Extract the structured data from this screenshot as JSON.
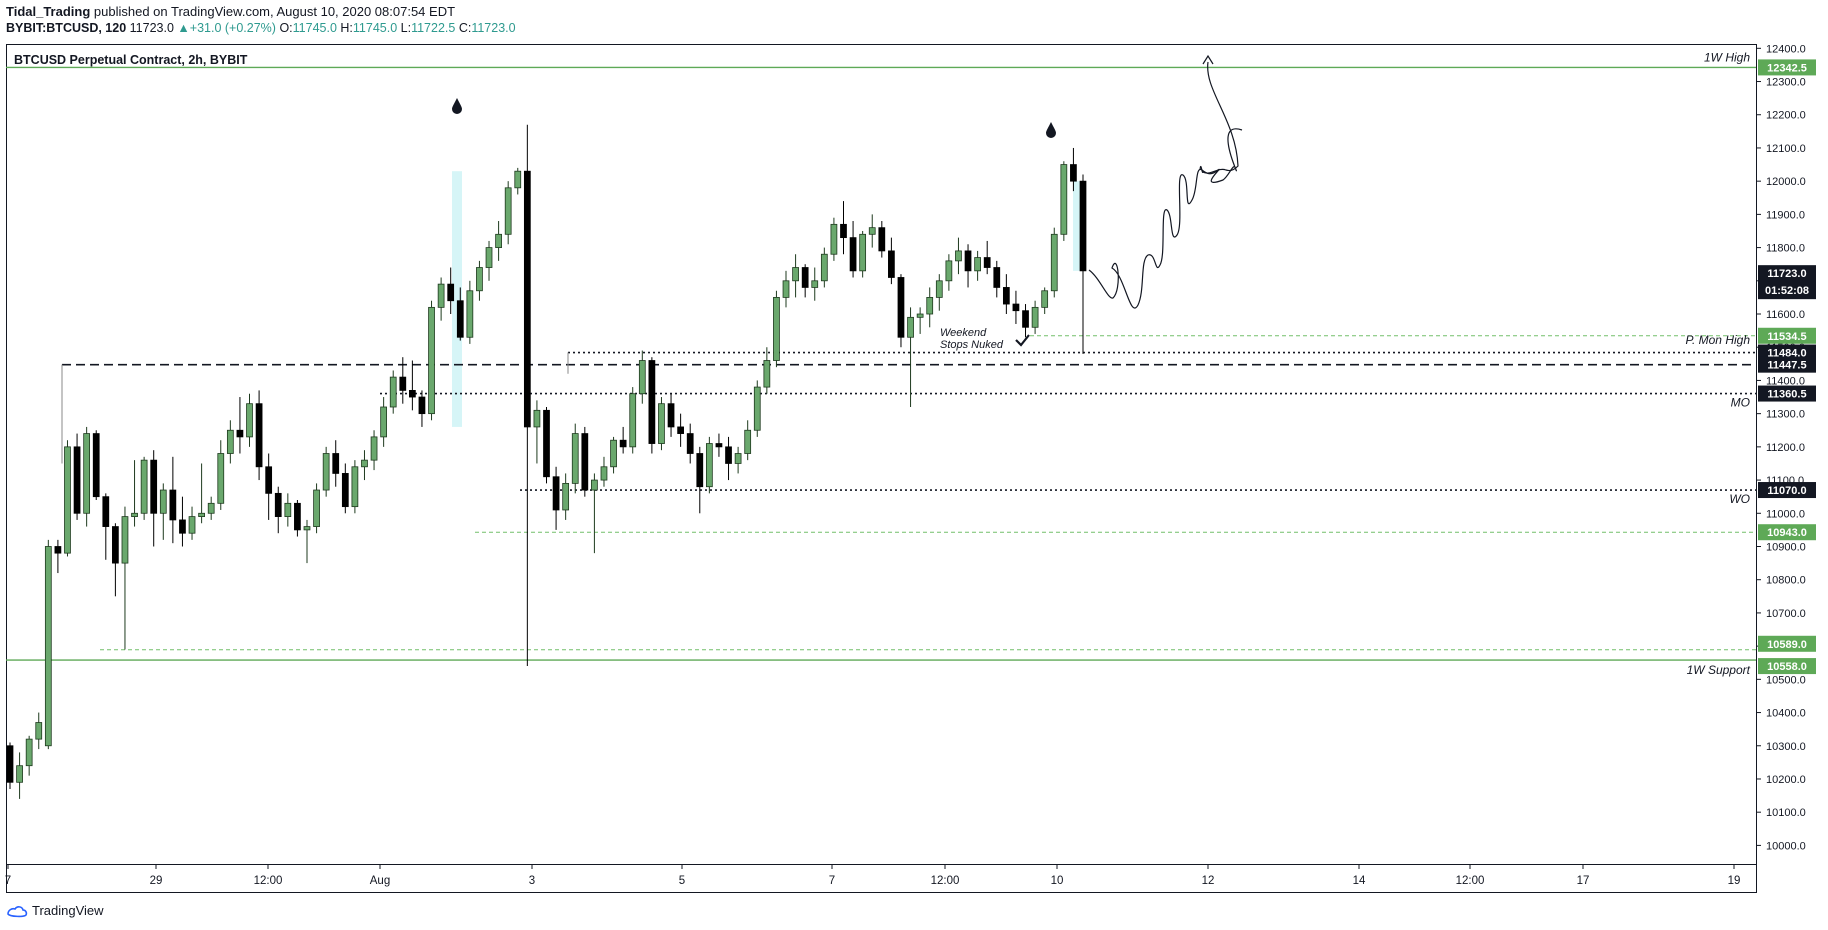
{
  "header": {
    "author": "Tidal_Trading",
    "published_text": "published on TradingView.com, August 10, 2020 08:07:54 EDT",
    "symbol": "BYBIT:BTCUSD, 120",
    "last": "11723.0",
    "change_arrow": "▲",
    "change": "+31.0 (+0.27%)",
    "o_label": "O:",
    "o": "11745.0",
    "h_label": "H:",
    "h": "11745.0",
    "l_label": "L:",
    "l": "11722.5",
    "c_label": "C:",
    "c": "11723.0"
  },
  "footer": {
    "brand": "TradingView",
    "logo_icon": "tradingview-logo-icon"
  },
  "colors": {
    "bull_fill": "#6aa86d",
    "bull_border": "#1e3a1e",
    "bear": "#000000",
    "support_line": "#5ea957",
    "dashed_green": "#72bf6a",
    "axis_text": "#131722",
    "price_tag_dark": "#131722",
    "price_tag_green": "#5ea957",
    "highlight": "#d6f5f7"
  },
  "chart_data": {
    "type": "candlestick",
    "title": "BTCUSD Perpetual Contract, 2h, BYBIT",
    "xlabel": "",
    "ylabel": "",
    "ylim": [
      9950,
      12420
    ],
    "y_ticks": [
      "12400.0",
      "12300.0",
      "12200.0",
      "12100.0",
      "12000.0",
      "11900.0",
      "11800.0",
      "11700.0",
      "11600.0",
      "11500.0",
      "11400.0",
      "11300.0",
      "11200.0",
      "11100.0",
      "11000.0",
      "10900.0",
      "10800.0",
      "10700.0",
      "10600.0",
      "10500.0",
      "10400.0",
      "10300.0",
      "10200.0",
      "10100.0",
      "10000.0"
    ],
    "x_ticks": [
      "7",
      "29",
      "12:00",
      "Aug",
      "3",
      "5",
      "7",
      "12:00",
      "10",
      "12",
      "14",
      "12:00",
      "17",
      "19"
    ],
    "legend": "none",
    "grid": false,
    "candles": [
      [
        10300,
        10310,
        10170,
        10190
      ],
      [
        10190,
        10280,
        10140,
        10240
      ],
      [
        10240,
        10330,
        10210,
        10320
      ],
      [
        10320,
        10400,
        10290,
        10370
      ],
      [
        10300,
        10920,
        10290,
        10900
      ],
      [
        10900,
        10920,
        10820,
        10880
      ],
      [
        10880,
        11220,
        10870,
        11200
      ],
      [
        11200,
        11240,
        10980,
        11000
      ],
      [
        11000,
        11260,
        10960,
        11240
      ],
      [
        11240,
        11250,
        11040,
        11050
      ],
      [
        11050,
        11060,
        10860,
        10960
      ],
      [
        10960,
        10970,
        10750,
        10850
      ],
      [
        10850,
        11020,
        10590,
        10990
      ],
      [
        10990,
        11160,
        10960,
        11000
      ],
      [
        11000,
        11170,
        10980,
        11160
      ],
      [
        11160,
        11190,
        10900,
        11000
      ],
      [
        11000,
        11090,
        10920,
        11070
      ],
      [
        11070,
        11170,
        10910,
        10980
      ],
      [
        10980,
        11050,
        10900,
        10940
      ],
      [
        10940,
        11020,
        10920,
        10990
      ],
      [
        10990,
        11150,
        10970,
        11000
      ],
      [
        11000,
        11050,
        10980,
        11030
      ],
      [
        11030,
        11220,
        11010,
        11180
      ],
      [
        11180,
        11280,
        11150,
        11250
      ],
      [
        11250,
        11350,
        11180,
        11230
      ],
      [
        11230,
        11360,
        11200,
        11330
      ],
      [
        11330,
        11370,
        11100,
        11140
      ],
      [
        11140,
        11180,
        10980,
        11060
      ],
      [
        11060,
        11080,
        10940,
        10990
      ],
      [
        10990,
        11060,
        10960,
        11030
      ],
      [
        11030,
        11040,
        10930,
        10950
      ],
      [
        10950,
        10980,
        10850,
        10960
      ],
      [
        10960,
        11090,
        10940,
        11070
      ],
      [
        11070,
        11200,
        11050,
        11180
      ],
      [
        11180,
        11220,
        11080,
        11120
      ],
      [
        11120,
        11150,
        11000,
        11020
      ],
      [
        11020,
        11160,
        11000,
        11140
      ],
      [
        11140,
        11190,
        11100,
        11160
      ],
      [
        11160,
        11250,
        11130,
        11230
      ],
      [
        11230,
        11350,
        11200,
        11320
      ],
      [
        11320,
        11430,
        11300,
        11410
      ],
      [
        11410,
        11470,
        11330,
        11370
      ],
      [
        11370,
        11460,
        11310,
        11350
      ],
      [
        11350,
        11370,
        11260,
        11300
      ],
      [
        11300,
        11640,
        11280,
        11620
      ],
      [
        11620,
        11710,
        11580,
        11690
      ],
      [
        11690,
        11740,
        11600,
        11640
      ],
      [
        11640,
        11680,
        11520,
        11530
      ],
      [
        11530,
        11700,
        11510,
        11670
      ],
      [
        11670,
        11760,
        11640,
        11740
      ],
      [
        11740,
        11820,
        11700,
        11800
      ],
      [
        11800,
        11880,
        11760,
        11840
      ],
      [
        11840,
        12000,
        11810,
        11980
      ],
      [
        11980,
        12040,
        11960,
        12030
      ],
      [
        12030,
        12170,
        10540,
        11260
      ],
      [
        11260,
        11340,
        11150,
        11310
      ],
      [
        11310,
        11320,
        11090,
        11110
      ],
      [
        11110,
        11140,
        10950,
        11010
      ],
      [
        11010,
        11120,
        10980,
        11090
      ],
      [
        11090,
        11270,
        11060,
        11240
      ],
      [
        11240,
        11260,
        11050,
        11070
      ],
      [
        11070,
        11120,
        10880,
        11100
      ],
      [
        11100,
        11170,
        11080,
        11140
      ],
      [
        11140,
        11230,
        11120,
        11220
      ],
      [
        11220,
        11260,
        11180,
        11200
      ],
      [
        11200,
        11380,
        11180,
        11360
      ],
      [
        11360,
        11490,
        11330,
        11460
      ],
      [
        11460,
        11470,
        11180,
        11210
      ],
      [
        11210,
        11350,
        11190,
        11330
      ],
      [
        11330,
        11360,
        11230,
        11260
      ],
      [
        11260,
        11300,
        11200,
        11240
      ],
      [
        11240,
        11270,
        11150,
        11180
      ],
      [
        11180,
        11200,
        11000,
        11080
      ],
      [
        11080,
        11230,
        11060,
        11210
      ],
      [
        11210,
        11240,
        11170,
        11200
      ],
      [
        11200,
        11230,
        11100,
        11150
      ],
      [
        11150,
        11200,
        11120,
        11180
      ],
      [
        11180,
        11280,
        11160,
        11250
      ],
      [
        11250,
        11400,
        11230,
        11380
      ],
      [
        11380,
        11500,
        11360,
        11460
      ],
      [
        11460,
        11670,
        11440,
        11650
      ],
      [
        11650,
        11730,
        11620,
        11700
      ],
      [
        11700,
        11780,
        11650,
        11740
      ],
      [
        11740,
        11750,
        11650,
        11680
      ],
      [
        11680,
        11740,
        11640,
        11700
      ],
      [
        11700,
        11800,
        11680,
        11780
      ],
      [
        11780,
        11890,
        11760,
        11870
      ],
      [
        11870,
        11940,
        11780,
        11830
      ],
      [
        11830,
        11880,
        11710,
        11730
      ],
      [
        11730,
        11850,
        11710,
        11840
      ],
      [
        11840,
        11900,
        11800,
        11860
      ],
      [
        11860,
        11880,
        11770,
        11790
      ],
      [
        11790,
        11830,
        11690,
        11710
      ],
      [
        11710,
        11720,
        11500,
        11530
      ],
      [
        11530,
        11620,
        11320,
        11590
      ],
      [
        11590,
        11620,
        11540,
        11600
      ],
      [
        11600,
        11680,
        11560,
        11650
      ],
      [
        11650,
        11720,
        11610,
        11700
      ],
      [
        11700,
        11780,
        11670,
        11760
      ],
      [
        11760,
        11830,
        11720,
        11790
      ],
      [
        11790,
        11810,
        11680,
        11730
      ],
      [
        11730,
        11790,
        11700,
        11770
      ],
      [
        11770,
        11820,
        11720,
        11740
      ],
      [
        11740,
        11760,
        11650,
        11680
      ],
      [
        11680,
        11720,
        11600,
        11630
      ],
      [
        11630,
        11670,
        11570,
        11610
      ],
      [
        11610,
        11630,
        11530,
        11560
      ],
      [
        11560,
        11640,
        11540,
        11620
      ],
      [
        11620,
        11680,
        11600,
        11670
      ],
      [
        11670,
        11860,
        11650,
        11840
      ],
      [
        11840,
        12060,
        11820,
        12050
      ],
      [
        12050,
        12100,
        11970,
        12000
      ],
      [
        12000,
        12020,
        11480,
        11730
      ]
    ],
    "annotations": [
      "Weekend",
      "Stops Nuked"
    ],
    "levels": [
      {
        "label": "1W High",
        "price": "12342.5",
        "style": "solid-green"
      },
      {
        "label": "P. Mon High",
        "price": "11534.5",
        "style": "dashed-green"
      },
      {
        "label": "",
        "price": "11484.0",
        "style": "dotted-black"
      },
      {
        "label": "",
        "price": "11447.5",
        "style": "dashed-black"
      },
      {
        "label": "MO",
        "price": "11360.5",
        "style": "dotted-black"
      },
      {
        "label": "WO",
        "price": "11070.0",
        "style": "dotted-black"
      },
      {
        "label": "",
        "price": "10943.0",
        "style": "dashed-green"
      },
      {
        "label": "",
        "price": "10589.0",
        "style": "dashed-green"
      },
      {
        "label": "1W Support",
        "price": "10558.0",
        "style": "solid-green"
      }
    ],
    "last_price_tag": "11723.0",
    "countdown": "01:52:08"
  }
}
